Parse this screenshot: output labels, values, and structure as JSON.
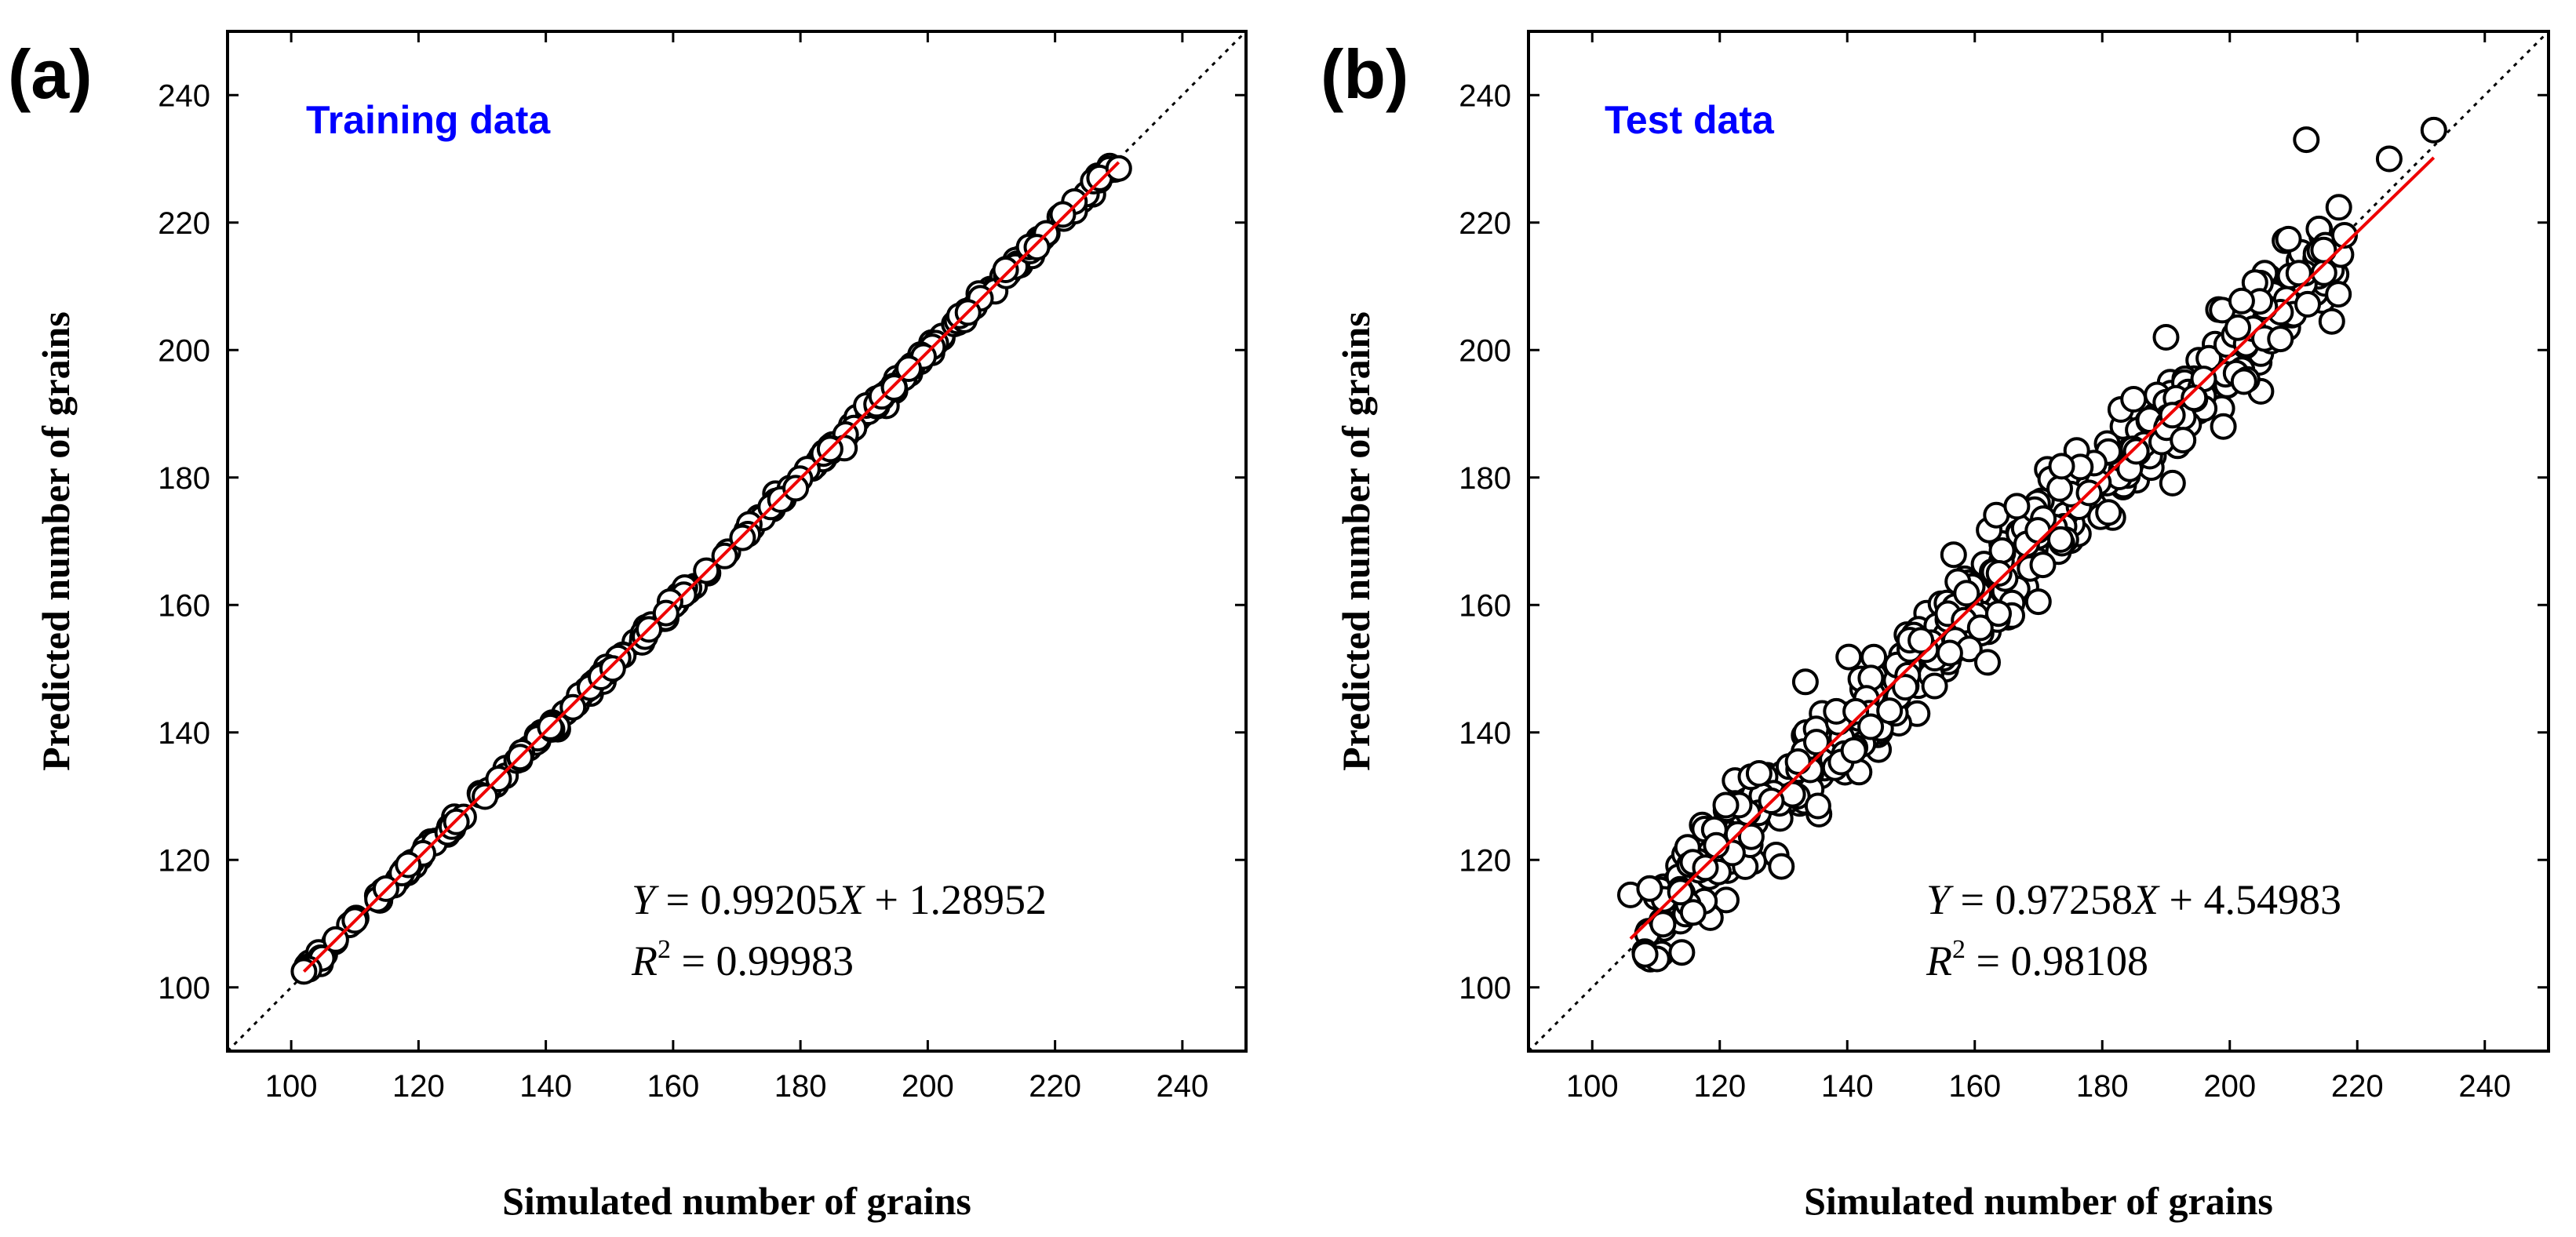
{
  "chart_data": [
    {
      "panel_label": "(a)",
      "type": "scatter",
      "title": "Training data",
      "xlabel": "Simulated number of grains",
      "ylabel": "Predicted number of grains",
      "xlim": [
        90,
        250
      ],
      "ylim": [
        90,
        250
      ],
      "xticks": [
        100,
        120,
        140,
        160,
        180,
        200,
        220,
        240
      ],
      "yticks": [
        100,
        120,
        140,
        160,
        180,
        200,
        220,
        240
      ],
      "fit": {
        "slope": 0.99205,
        "intercept": 1.28952,
        "x_range": [
          102,
          230
        ]
      },
      "identity_line": true,
      "equation": {
        "y_var": "Y",
        "slope_text": " = 0.99205",
        "x_var": "X",
        "intercept_text": " + 1.28952",
        "r2_prefix": "R",
        "r2_sup": "2",
        "r2_text": " = 0.99983"
      },
      "points": {
        "x_range": [
          102,
          230
        ],
        "count": 260,
        "noise_sd": 0.5,
        "extra": [
          [
            102,
            102.5
          ],
          [
            107,
            107.5
          ],
          [
            110,
            110.5
          ],
          [
            226,
            226.5
          ],
          [
            227,
            227
          ],
          [
            230,
            228.5
          ]
        ]
      }
    },
    {
      "panel_label": "(b)",
      "type": "scatter",
      "title": "Test data",
      "xlabel": "Simulated number of grains",
      "ylabel": "Predicted number of grains",
      "xlim": [
        90,
        250
      ],
      "ylim": [
        90,
        250
      ],
      "xticks": [
        100,
        120,
        140,
        160,
        180,
        200,
        220,
        240
      ],
      "yticks": [
        100,
        120,
        140,
        160,
        180,
        200,
        220,
        240
      ],
      "fit": {
        "slope": 0.97258,
        "intercept": 4.54983,
        "x_range": [
          106,
          232
        ]
      },
      "identity_line": true,
      "equation": {
        "y_var": "Y",
        "slope_text": " = 0.97258",
        "x_var": "X",
        "intercept_text": " + 4.54983",
        "r2_prefix": "R",
        "r2_sup": "2",
        "r2_text": " = 0.98108"
      },
      "points": {
        "x_range": [
          108,
          218
        ],
        "count": 560,
        "noise_sd": 4.0,
        "extra": [
          [
            106,
            114.5
          ],
          [
            109,
            115.5
          ],
          [
            212,
            233
          ],
          [
            225,
            230
          ],
          [
            232,
            234.5
          ],
          [
            199,
            188
          ],
          [
            162,
            151
          ],
          [
            190,
            202
          ],
          [
            216,
            204.5
          ],
          [
            218,
            218
          ]
        ]
      }
    }
  ]
}
